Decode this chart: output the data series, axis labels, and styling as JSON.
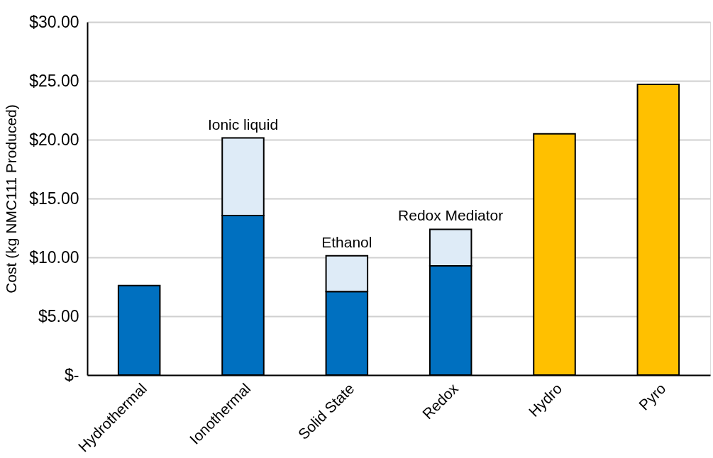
{
  "chart_data": {
    "type": "bar",
    "stacked": true,
    "ylabel": "Cost (kg NMC111 Produced)",
    "categories": [
      "Hydrothermal",
      "Ionothermal",
      "Solid State",
      "Redox",
      "Hydro",
      "Pyro"
    ],
    "series": [
      {
        "colors": [
          "#0070c0",
          "#0070c0",
          "#0070c0",
          "#0070c0",
          "#ffc000",
          "#ffc000"
        ],
        "values": [
          7.6,
          13.55,
          7.1,
          9.28,
          20.5,
          24.7
        ]
      },
      {
        "color": "#deebf7",
        "values": [
          null,
          6.6,
          3.03,
          3.1,
          null,
          null
        ]
      }
    ],
    "ylim": [
      0,
      30
    ],
    "yticks": [
      {
        "value": 0,
        "label": "$-"
      },
      {
        "value": 5,
        "label": "$5.00"
      },
      {
        "value": 10,
        "label": "$10.00"
      },
      {
        "value": 15,
        "label": "$15.00"
      },
      {
        "value": 20,
        "label": "$20.00"
      },
      {
        "value": 25,
        "label": "$25.00"
      },
      {
        "value": 30,
        "label": "$30.00"
      }
    ],
    "grid": "y",
    "annotations": [
      {
        "text": "Ionic liquid",
        "x": "Ionothermal",
        "y": 20.15
      },
      {
        "text": "Ethanol",
        "x": "Solid State",
        "y": 10.13
      },
      {
        "text": "Redox Mediator",
        "x": "Redox",
        "y": 12.38
      }
    ]
  }
}
